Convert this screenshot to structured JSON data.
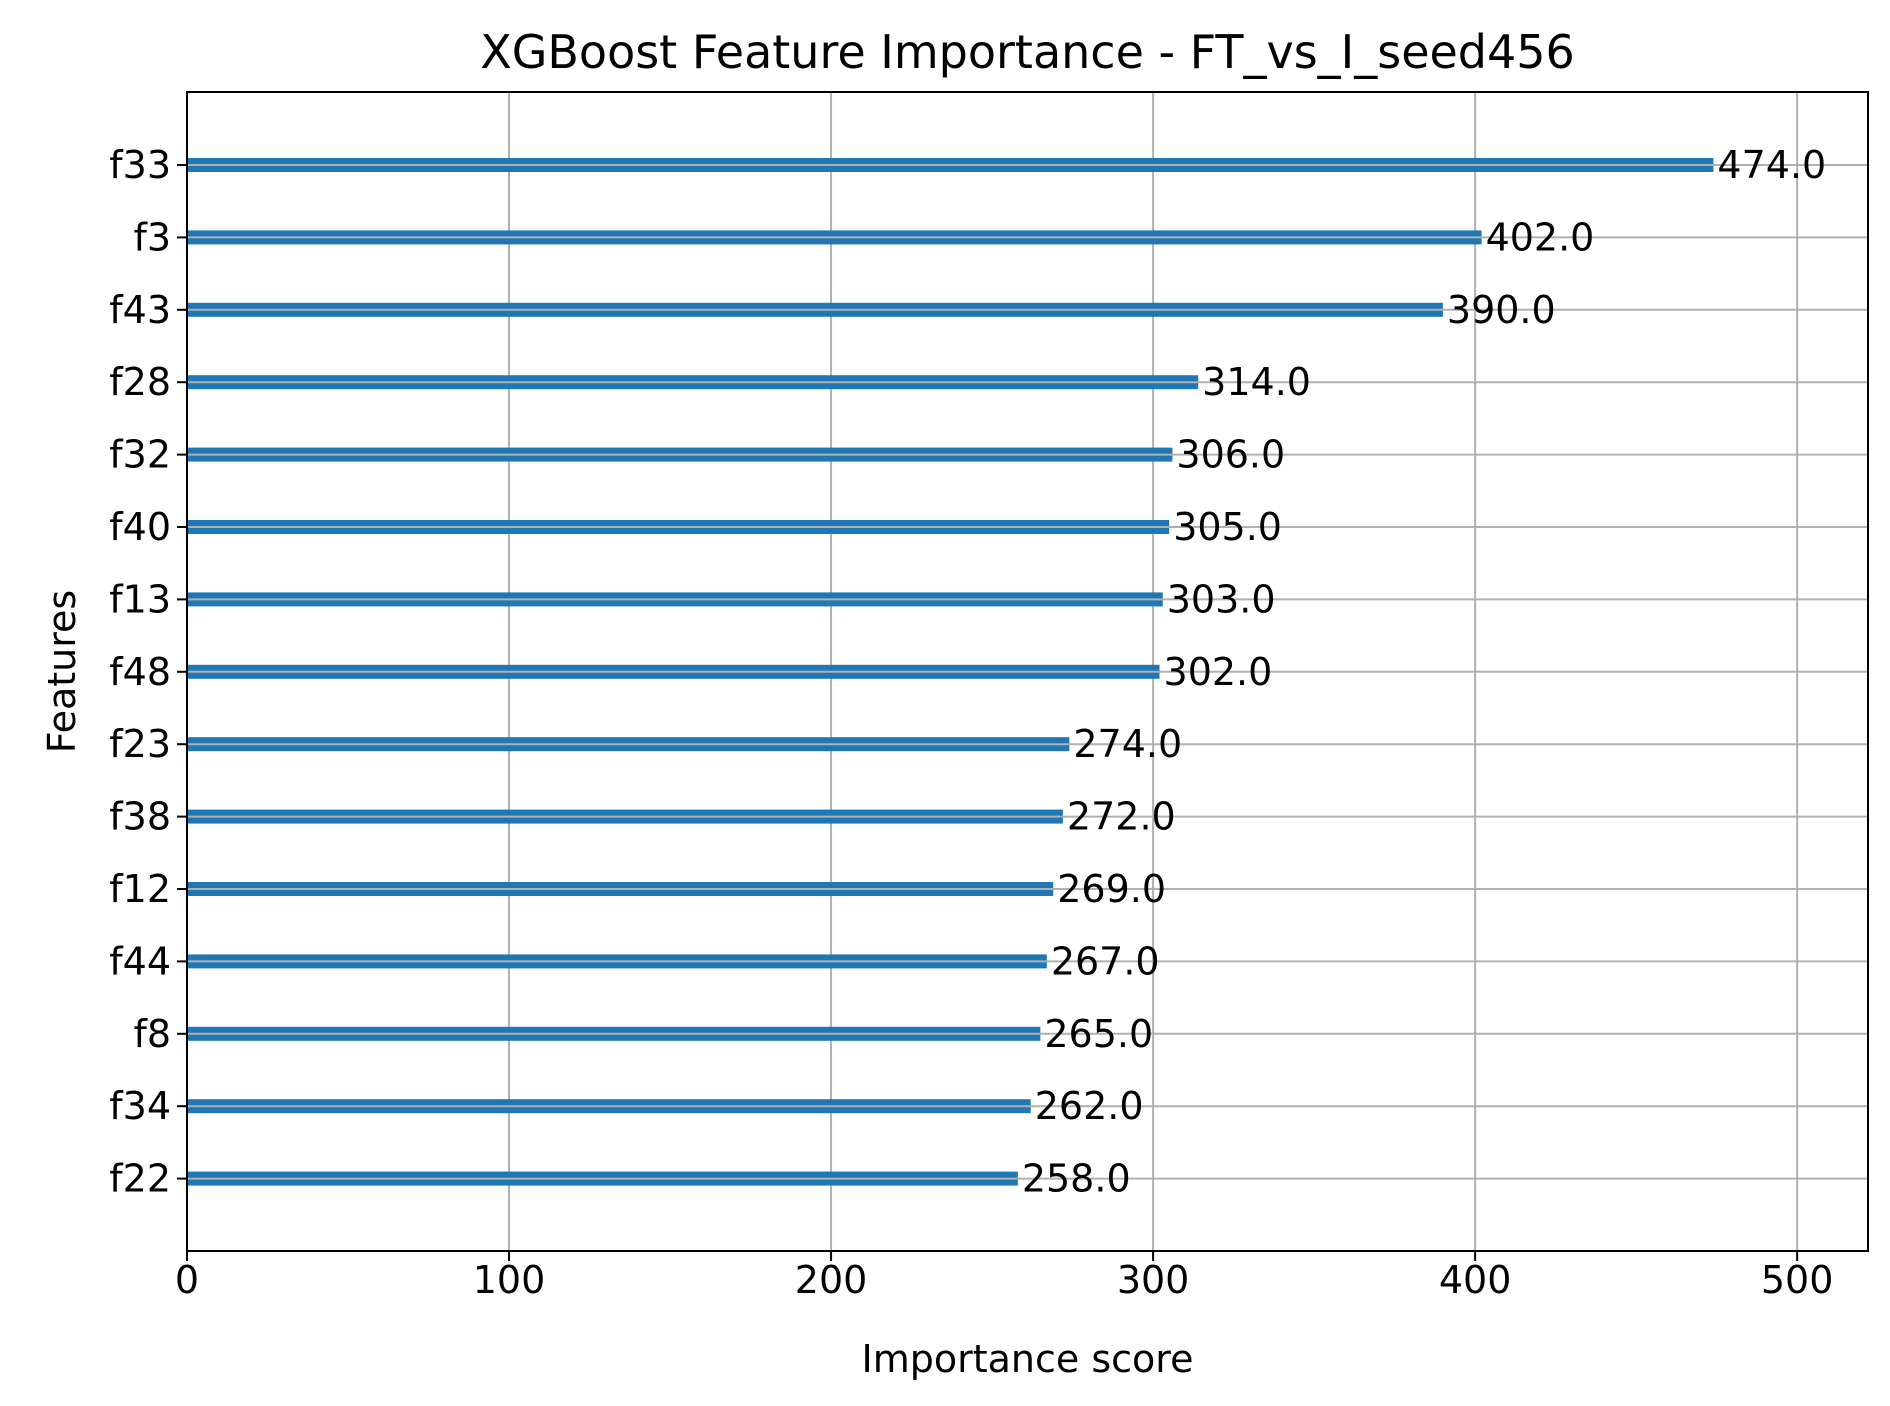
{
  "chart_data": {
    "type": "bar",
    "orientation": "horizontal",
    "title": "XGBoost Feature Importance - FT_vs_I_seed456",
    "xlabel": "Importance score",
    "ylabel": "Features",
    "categories": [
      "f33",
      "f3",
      "f43",
      "f28",
      "f32",
      "f40",
      "f13",
      "f48",
      "f23",
      "f38",
      "f12",
      "f44",
      "f8",
      "f34",
      "f22"
    ],
    "values": [
      474,
      402,
      390,
      314,
      306,
      305,
      303,
      302,
      274,
      272,
      269,
      267,
      265,
      262,
      258
    ],
    "value_labels": [
      "474.0",
      "402.0",
      "390.0",
      "314.0",
      "306.0",
      "305.0",
      "303.0",
      "302.0",
      "274.0",
      "272.0",
      "269.0",
      "267.0",
      "265.0",
      "262.0",
      "258.0"
    ],
    "xlim": [
      0,
      522
    ],
    "xticks": [
      0,
      100,
      200,
      300,
      400,
      500
    ],
    "xtick_labels": [
      "0",
      "100",
      "200",
      "300",
      "400",
      "500"
    ],
    "grid": true,
    "bar_color": "#1f77b4",
    "grid_color": "#b0b0b0"
  }
}
